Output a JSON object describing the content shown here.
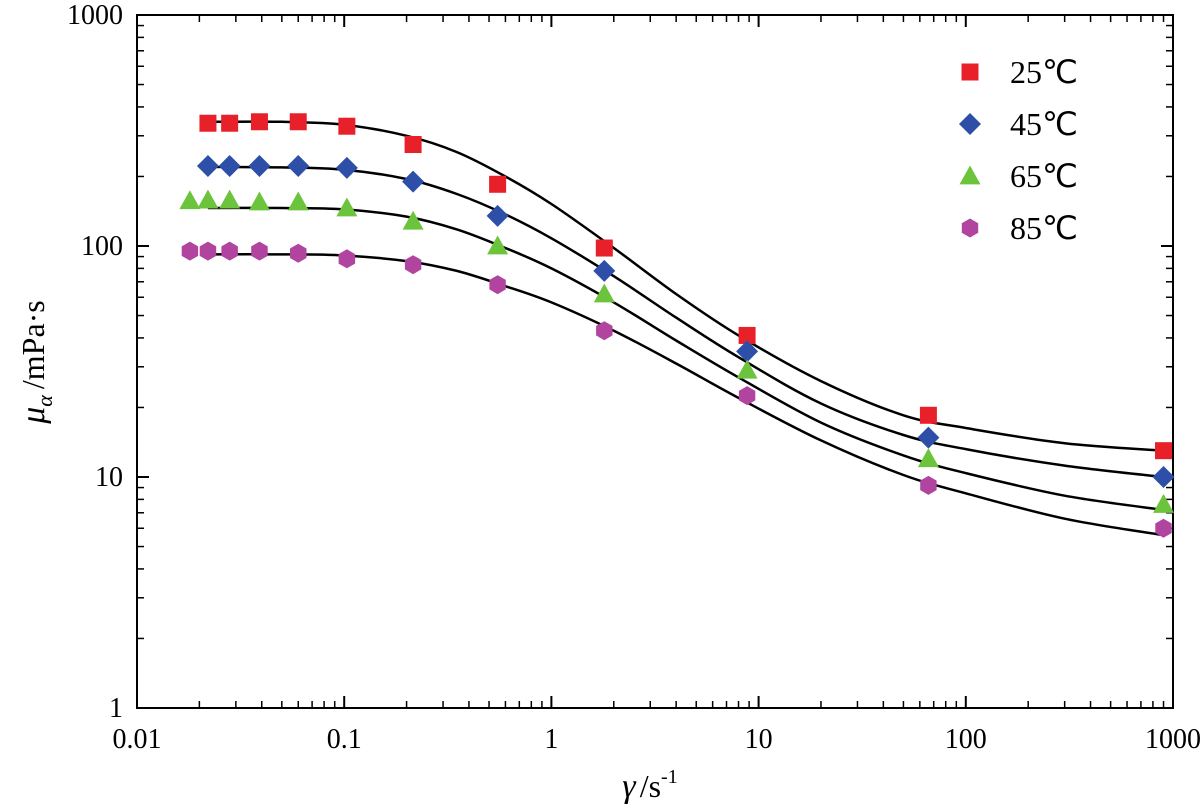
{
  "chart_data": {
    "type": "scatter",
    "x_scale": "log",
    "y_scale": "log",
    "xlim": [
      0.01,
      1000
    ],
    "ylim": [
      1,
      1000
    ],
    "x_ticks": [
      "0.01",
      "0.1",
      "1",
      "10",
      "100",
      "1000"
    ],
    "y_ticks": [
      "1",
      "10",
      "100",
      "1000"
    ],
    "xlabel": {
      "symbol": "γ",
      "unit": "/s",
      "sup": "-1"
    },
    "ylabel": {
      "symbol": "μ",
      "sub": "α",
      "unit": "/mPa·s"
    },
    "legend_position": "top-right",
    "grid": false,
    "series": [
      {
        "name": "25℃",
        "marker": "square",
        "color": "#e8202a",
        "x": [
          0.022,
          0.028,
          0.039,
          0.06,
          0.103,
          0.215,
          0.55,
          1.8,
          8.8,
          66,
          900
        ],
        "y": [
          340,
          340,
          345,
          345,
          330,
          275,
          185,
          98,
          41,
          18.5,
          13
        ]
      },
      {
        "name": "45℃",
        "marker": "diamond",
        "color": "#2e4fa8",
        "x": [
          0.022,
          0.028,
          0.039,
          0.06,
          0.103,
          0.215,
          0.55,
          1.8,
          8.8,
          66,
          900
        ],
        "y": [
          222,
          222,
          222,
          222,
          218,
          190,
          135,
          78,
          35,
          14.8,
          10
        ]
      },
      {
        "name": "65℃",
        "marker": "triangle",
        "color": "#6cc43c",
        "x": [
          0.018,
          0.022,
          0.028,
          0.039,
          0.06,
          0.103,
          0.215,
          0.55,
          1.8,
          8.8,
          66,
          900
        ],
        "y": [
          157,
          158,
          158,
          155,
          155,
          146,
          128,
          100,
          62,
          29,
          12,
          7.6
        ]
      },
      {
        "name": "85℃",
        "marker": "hexagon",
        "color": "#b0449e",
        "x": [
          0.018,
          0.022,
          0.028,
          0.039,
          0.06,
          0.103,
          0.215,
          0.55,
          1.8,
          8.8,
          66,
          900
        ],
        "y": [
          95,
          95,
          95,
          95,
          93,
          88,
          83,
          68,
          43,
          22.5,
          9.2,
          6
        ]
      }
    ],
    "fit_curves": [
      {
        "x": [
          0.022,
          0.05,
          0.1,
          0.2,
          0.35,
          0.6,
          1,
          2,
          4,
          8,
          20,
          50,
          100,
          300,
          900
        ],
        "y": [
          345,
          345,
          335,
          300,
          255,
          200,
          152,
          98,
          62,
          41,
          26,
          18.5,
          16.3,
          14,
          13
        ]
      },
      {
        "x": [
          0.022,
          0.05,
          0.1,
          0.2,
          0.35,
          0.6,
          1,
          2,
          4,
          8,
          20,
          50,
          100,
          300,
          900
        ],
        "y": [
          220,
          219,
          214,
          195,
          168,
          137,
          108,
          74,
          49,
          33,
          20.8,
          15.2,
          13.2,
          11.2,
          10
        ]
      },
      {
        "x": [
          0.022,
          0.05,
          0.1,
          0.2,
          0.35,
          0.6,
          1,
          2,
          4,
          8,
          20,
          50,
          100,
          300,
          900
        ],
        "y": [
          146,
          146,
          144,
          134,
          118,
          98,
          80,
          57,
          39,
          27,
          17.2,
          12.4,
          10.4,
          8.3,
          7.2
        ]
      },
      {
        "x": [
          0.022,
          0.05,
          0.1,
          0.2,
          0.35,
          0.6,
          1,
          2,
          4,
          8,
          20,
          50,
          100,
          300,
          900
        ],
        "y": [
          92,
          92,
          91,
          86,
          78,
          67,
          57,
          43,
          31,
          22,
          14.4,
          10.2,
          8.5,
          6.6,
          5.6
        ]
      }
    ]
  }
}
